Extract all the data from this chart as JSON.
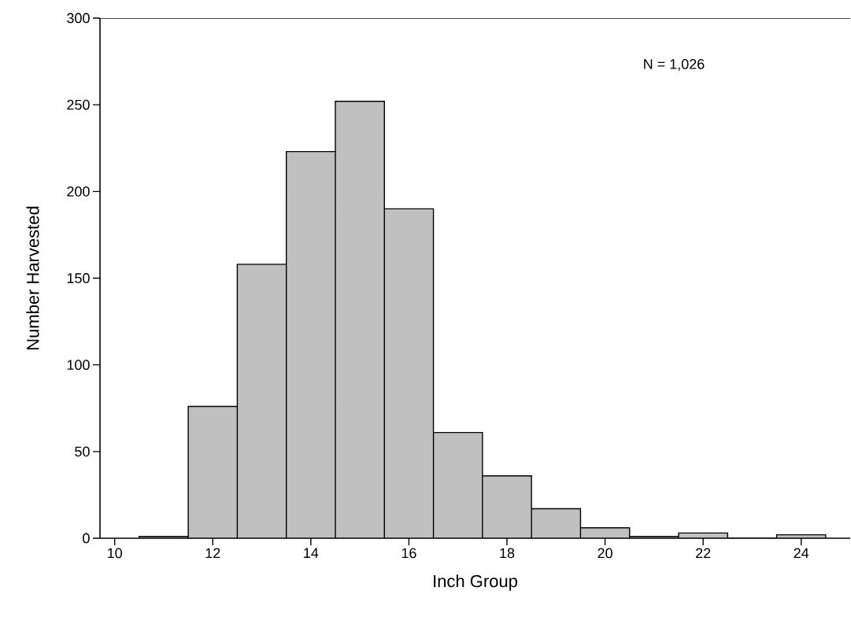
{
  "chart_data": {
    "type": "histogram",
    "xlabel": "Inch Group",
    "ylabel": "Number Harvested",
    "bins": [
      10.5,
      11.5,
      12.5,
      13.5,
      14.5,
      15.5,
      16.5,
      17.5,
      18.5,
      19.5,
      20.5,
      21.5,
      22.5,
      23.5,
      24.5
    ],
    "values": [
      1,
      76,
      158,
      223,
      252,
      190,
      61,
      36,
      17,
      6,
      1,
      3,
      0,
      2
    ],
    "color": "#c0c0c0",
    "xlim": [
      9.7,
      25
    ],
    "xticks": [
      10,
      12,
      14,
      16,
      18,
      20,
      22,
      24
    ],
    "ylim": [
      0,
      300
    ],
    "yticks": [
      0,
      50,
      100,
      150,
      200,
      250,
      300
    ],
    "annotations": [
      "N = 1,026"
    ]
  }
}
